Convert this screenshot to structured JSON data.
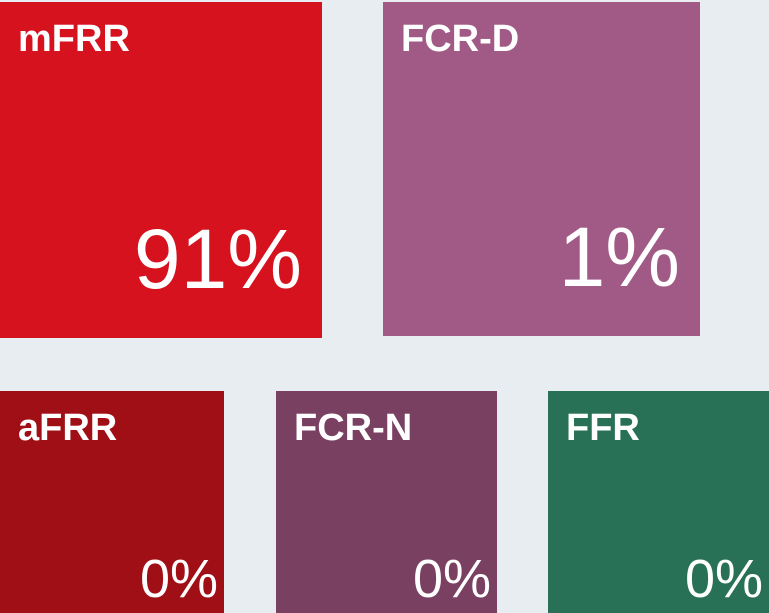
{
  "tiles": [
    {
      "label": "mFRR",
      "value": "91%",
      "color": "#d6121f"
    },
    {
      "label": "FCR-D",
      "value": "1%",
      "color": "#a15a85"
    },
    {
      "label": "aFRR",
      "value": "0%",
      "color": "#a00f16"
    },
    {
      "label": "FCR-N",
      "value": "0%",
      "color": "#7a4062"
    },
    {
      "label": "FFR",
      "value": "0%",
      "color": "#287156"
    }
  ]
}
